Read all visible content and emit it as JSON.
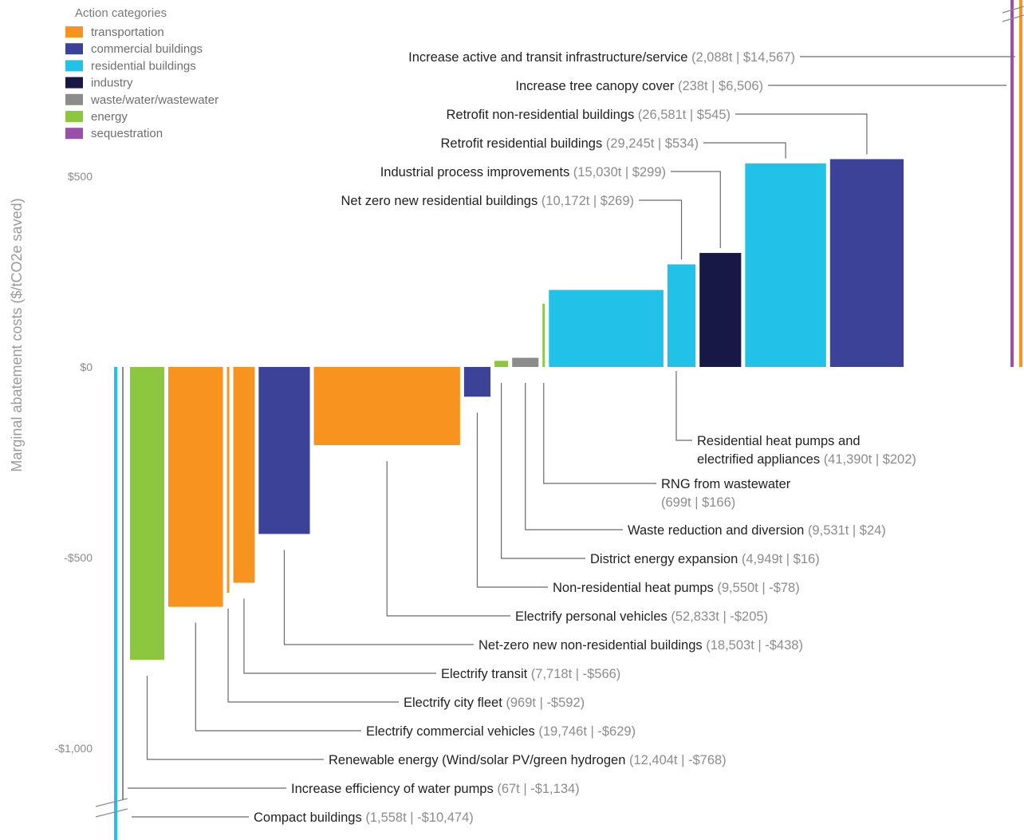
{
  "chart_data": {
    "type": "bar",
    "subtype": "marginal abatement cost curve (bar width = tCO2e abated, height = $/tCO2e saved)",
    "ylabel": "Marginal abatement costs ($/tCO2e saved)",
    "ylim": [
      -1150,
      950
    ],
    "yticks": [
      {
        "value": 500,
        "label": "$500"
      },
      {
        "value": 0,
        "label": "$0"
      },
      {
        "value": -500,
        "label": "-$500"
      },
      {
        "value": -1000,
        "label": "-$1,000"
      }
    ],
    "legend": {
      "title": "Action categories",
      "placement": "top-left",
      "items": [
        {
          "key": "transportation",
          "label": "transportation",
          "color": "#F7931E"
        },
        {
          "key": "commercial",
          "label": "commercial buildings",
          "color": "#3C4298"
        },
        {
          "key": "residential",
          "label": "residential buildings",
          "color": "#22C1E8"
        },
        {
          "key": "industry",
          "label": "industry",
          "color": "#171845"
        },
        {
          "key": "waste",
          "label": "waste/water/wastewater",
          "color": "#8C8C8C"
        },
        {
          "key": "energy",
          "label": "energy",
          "color": "#8DC63F"
        },
        {
          "key": "sequestration",
          "label": "sequestration",
          "color": "#9A4FA8"
        }
      ]
    },
    "actions": [
      {
        "name": "Compact buildings",
        "detail": "(1,558t | -$10,474)",
        "tonnes": 1558,
        "cost": -10474,
        "category": "residential",
        "axis_break": true
      },
      {
        "name": "Increase efficiency of water pumps",
        "detail": "(67t | -$1,134)",
        "tonnes": 67,
        "cost": -1134,
        "category": "waste"
      },
      {
        "name": "Renewable energy (Wind/solar PV/green hydrogen",
        "detail": "(12,404t | -$768)",
        "tonnes": 12404,
        "cost": -768,
        "category": "energy"
      },
      {
        "name": "Electrify commercial vehicles",
        "detail": "(19,746t | -$629)",
        "tonnes": 19746,
        "cost": -629,
        "category": "transportation"
      },
      {
        "name": "Electrify city fleet",
        "detail": "(969t | -$592)",
        "tonnes": 969,
        "cost": -592,
        "category": "transportation"
      },
      {
        "name": "Electrify transit",
        "detail": "(7,718t | -$566)",
        "tonnes": 7718,
        "cost": -566,
        "category": "transportation"
      },
      {
        "name": "Net-zero new non-residential buildings",
        "detail": "(18,503t | -$438)",
        "tonnes": 18503,
        "cost": -438,
        "category": "commercial"
      },
      {
        "name": "Electrify personal vehicles",
        "detail": "(52,833t | -$205)",
        "tonnes": 52833,
        "cost": -205,
        "category": "transportation"
      },
      {
        "name": "Non-residential heat pumps",
        "detail": "(9,550t | -$78)",
        "tonnes": 9550,
        "cost": -78,
        "category": "commercial"
      },
      {
        "name": "District energy expansion",
        "detail": "(4,949t | $16)",
        "tonnes": 4949,
        "cost": 16,
        "category": "energy"
      },
      {
        "name": "Waste reduction and diversion",
        "detail": "(9,531t | $24)",
        "tonnes": 9531,
        "cost": 24,
        "category": "waste"
      },
      {
        "name": "RNG from wastewater",
        "detail": "(699t | $166)",
        "tonnes": 699,
        "cost": 166,
        "category": "energy"
      },
      {
        "name": "Residential heat pumps and electrified appliances",
        "name_lines": [
          "Residential heat pumps and",
          "electrified appliances"
        ],
        "detail": "(41,390t | $202)",
        "tonnes": 41390,
        "cost": 202,
        "category": "residential"
      },
      {
        "name": "Net zero new residential buildings",
        "detail": "(10,172t | $269)",
        "tonnes": 10172,
        "cost": 269,
        "category": "residential"
      },
      {
        "name": "Industrial process improvements",
        "detail": "(15,030t | $299)",
        "tonnes": 15030,
        "cost": 299,
        "category": "industry"
      },
      {
        "name": "Retrofit residential buildings",
        "detail": "(29,245t | $534)",
        "tonnes": 29245,
        "cost": 534,
        "category": "residential"
      },
      {
        "name": "Retrofit non-residential buildings",
        "detail": "(26,581t | $545)",
        "tonnes": 26581,
        "cost": 545,
        "category": "commercial"
      },
      {
        "name": "Increase tree canopy cover",
        "detail": "(238t | $6,506)",
        "tonnes": 238,
        "cost": 6506,
        "category": "sequestration",
        "axis_break": true
      },
      {
        "name": "Increase active and transit infrastructure/service",
        "detail": "(2,088t | $14,567)",
        "tonnes": 2088,
        "cost": 14567,
        "category": "transportation",
        "axis_break": true
      }
    ]
  }
}
